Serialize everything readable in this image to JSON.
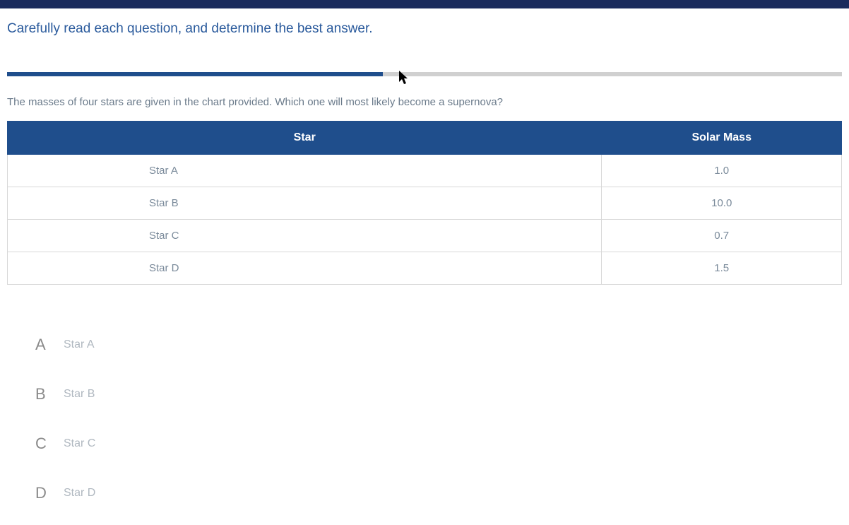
{
  "instruction": "Carefully read each question, and determine the best answer.",
  "progress_percent": 45,
  "question": "The masses of four stars are given in the chart provided. Which one will most likely become a supernova?",
  "table": {
    "columns": [
      "Star",
      "Solar Mass"
    ],
    "rows": [
      [
        "Star A",
        "1.0"
      ],
      [
        "Star B",
        "10.0"
      ],
      [
        "Star C",
        "0.7"
      ],
      [
        "Star D",
        "1.5"
      ]
    ],
    "header_bg": "#1f4e8c",
    "header_color": "#ffffff",
    "cell_border": "#d8d8d8",
    "cell_color": "#7a8a9a"
  },
  "answers": [
    {
      "letter": "A",
      "text": "Star A"
    },
    {
      "letter": "B",
      "text": "Star B"
    },
    {
      "letter": "C",
      "text": "Star C"
    },
    {
      "letter": "D",
      "text": "Star D"
    }
  ],
  "colors": {
    "accent": "#1f4e8c",
    "instruction": "#2a5a9c",
    "muted": "#7a8a9a"
  }
}
